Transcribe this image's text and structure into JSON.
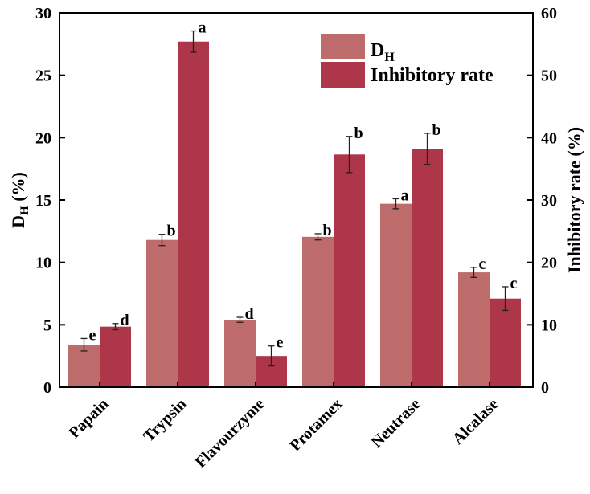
{
  "chart_data": {
    "type": "bar",
    "categories": [
      "Papain",
      "Trypsin",
      "Flavourzyme",
      "Protamex",
      "Neutrase",
      "Alcalase"
    ],
    "series": [
      {
        "name": "D_H",
        "legend_main": "D",
        "legend_sub": "H",
        "axis": "left",
        "color": "#bd6b6b",
        "values": [
          3.4,
          11.8,
          5.4,
          12.05,
          14.7,
          9.2
        ],
        "errors": [
          0.5,
          0.45,
          0.2,
          0.25,
          0.4,
          0.4
        ],
        "letters": [
          "e",
          "b",
          "d",
          "b",
          "a",
          "c"
        ]
      },
      {
        "name": "Inhibitory rate",
        "legend_main": "Inhibitory rate",
        "legend_sub": "",
        "axis": "right",
        "color": "#ad3648",
        "values": [
          9.7,
          55.4,
          5.0,
          37.3,
          38.2,
          14.2
        ],
        "errors": [
          0.5,
          1.7,
          1.6,
          2.9,
          2.5,
          1.9
        ],
        "letters": [
          "d",
          "a",
          "e",
          "b",
          "b",
          "c"
        ]
      }
    ],
    "left_axis": {
      "label_main": "D",
      "label_sub": "H",
      "label_unit": " (%)",
      "ylim": [
        0,
        30
      ],
      "ticks": [
        "0",
        "5",
        "10",
        "15",
        "20",
        "25",
        "30"
      ]
    },
    "right_axis": {
      "label": "Inhibitory rate (%)",
      "ylim": [
        0,
        60
      ],
      "ticks": [
        "0",
        "10",
        "20",
        "30",
        "40",
        "50",
        "60"
      ]
    },
    "legend_position": "top-right",
    "grid": false
  }
}
